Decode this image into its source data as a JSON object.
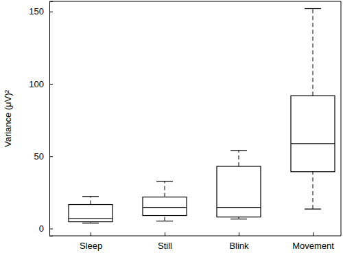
{
  "chart_data": {
    "type": "box",
    "y_label": "Variance (μV)²",
    "categories": [
      "Sleep",
      "Still",
      "Blink",
      "Movement"
    ],
    "min": [
      3.8,
      5.2,
      6.6,
      13.5
    ],
    "q1": [
      4.7,
      9,
      8,
      39.3
    ],
    "median": [
      7,
      14.7,
      14.7,
      58.7
    ],
    "q3": [
      16.6,
      21.8,
      43,
      91.8
    ],
    "max": [
      22.2,
      32.7,
      54,
      152
    ],
    "color": "#000000",
    "line_style": "dashed",
    "ylim": [
      -5,
      157
    ],
    "yticks": [
      0,
      50,
      100,
      150
    ],
    "grid": false
  }
}
